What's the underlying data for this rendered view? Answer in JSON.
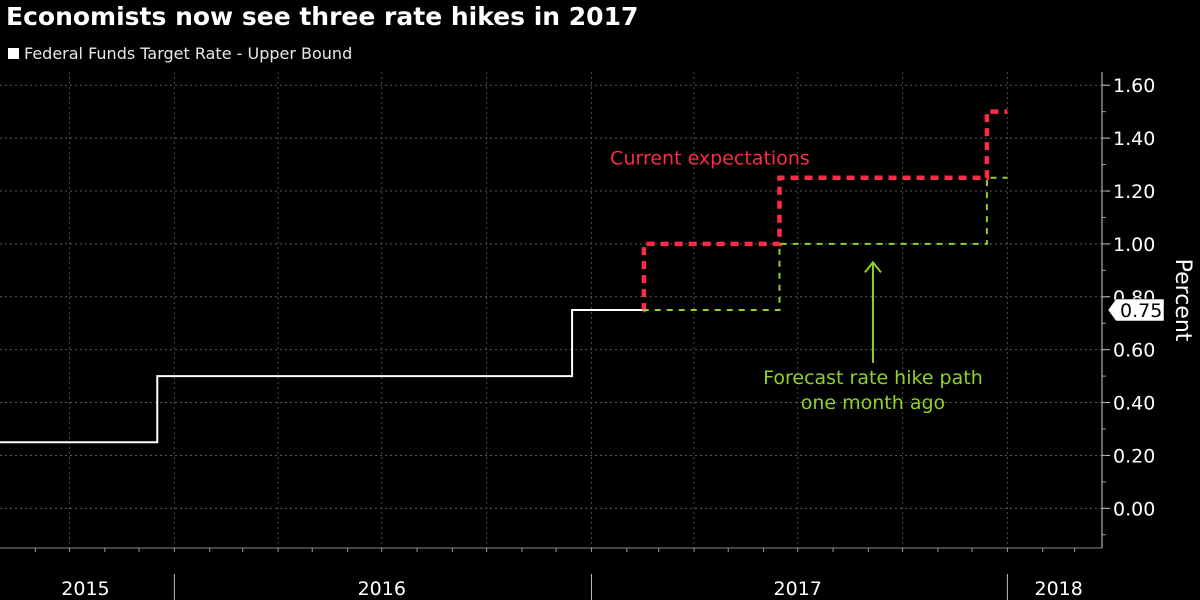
{
  "chart_data": {
    "type": "line",
    "title": "Economists now see three rate hikes in 2017",
    "ylabel": "Percent",
    "ylim": [
      -0.15,
      1.65
    ],
    "yticks": [
      "1.60",
      "1.40",
      "1.20",
      "1.00",
      "0.80",
      "0.60",
      "0.40",
      "0.20",
      "0.00"
    ],
    "ytick_values": [
      1.6,
      1.4,
      1.2,
      1.0,
      0.8,
      0.6,
      0.4,
      0.2,
      0.0
    ],
    "xlim": [
      "2015-08-01",
      "2018-03-25"
    ],
    "x_year_labels": [
      {
        "label": "2015",
        "center": "2015-10-15"
      },
      {
        "label": "2016",
        "center": "2016-07-01"
      },
      {
        "label": "2017",
        "center": "2017-07-01"
      },
      {
        "label": "2018",
        "center": "2018-02-15"
      }
    ],
    "x_year_boundaries": [
      "2016-01-01",
      "2017-01-01",
      "2018-01-01"
    ],
    "grid": true,
    "legend_position": "top-left",
    "last_value_label": "0.75",
    "series": [
      {
        "name": "Federal Funds Target Rate - Upper Bound",
        "color": "#ffffff",
        "style": "solid",
        "step": true,
        "points": [
          [
            "2015-08-01",
            0.25
          ],
          [
            "2015-12-16",
            0.25
          ],
          [
            "2015-12-17",
            0.5
          ],
          [
            "2016-12-14",
            0.5
          ],
          [
            "2016-12-15",
            0.75
          ],
          [
            "2017-02-15",
            0.75
          ]
        ]
      },
      {
        "name": "Current expectations",
        "color": "#ff2a45",
        "style": "dashed",
        "step": true,
        "points": [
          [
            "2017-02-15",
            0.75
          ],
          [
            "2017-02-16",
            1.0
          ],
          [
            "2017-06-14",
            1.0
          ],
          [
            "2017-06-15",
            1.25
          ],
          [
            "2017-12-13",
            1.25
          ],
          [
            "2017-12-14",
            1.5
          ],
          [
            "2018-01-01",
            1.5
          ]
        ]
      },
      {
        "name": "Forecast rate hike path one month ago",
        "color": "#8ed12d",
        "style": "dashed",
        "step": true,
        "points": [
          [
            "2017-02-15",
            0.75
          ],
          [
            "2017-06-14",
            0.75
          ],
          [
            "2017-06-15",
            1.0
          ],
          [
            "2017-12-13",
            1.0
          ],
          [
            "2017-12-14",
            1.25
          ],
          [
            "2018-01-01",
            1.25
          ]
        ]
      }
    ],
    "annotations": [
      {
        "lines": [
          "Current expectations"
        ],
        "color": "#ff2a45",
        "x": "2017-04-15",
        "y": 1.3
      },
      {
        "lines": [
          "Forecast rate hike path",
          "one month ago"
        ],
        "color": "#8ed12d",
        "x": "2017-09-05",
        "y": 0.47,
        "arrow": {
          "x": "2017-09-05",
          "from_y": 0.55,
          "to_y": 0.93
        }
      }
    ]
  }
}
